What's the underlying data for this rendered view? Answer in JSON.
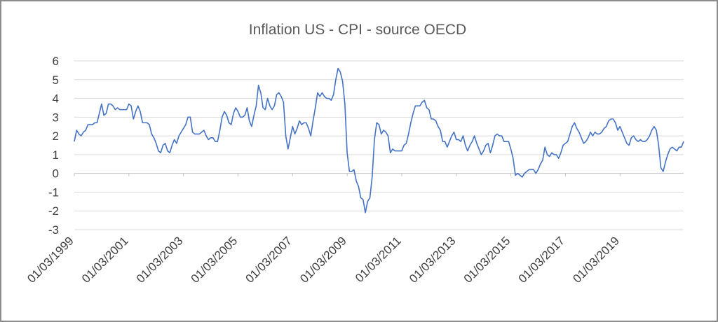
{
  "chart_data": {
    "type": "line",
    "title": "Inflation US - CPI - source OECD",
    "xlabel": "",
    "ylabel": "",
    "ylim": [
      -3,
      6
    ],
    "y_ticks": [
      6,
      5,
      4,
      3,
      2,
      1,
      0,
      -1,
      -2,
      -3
    ],
    "x_tick_labels": [
      "01/03/1999",
      "01/03/2001",
      "01/03/2003",
      "01/03/2005",
      "01/03/2007",
      "01/03/2009",
      "01/03/2011",
      "01/03/2013",
      "01/03/2015",
      "01/03/2017",
      "01/03/2019"
    ],
    "x_start": "1999-03",
    "x_end": "2020-12",
    "grid": true,
    "legend": "none",
    "line_color": "#4472c4",
    "series": [
      {
        "values": [
          1.7,
          2.3,
          2.1,
          2.0,
          2.2,
          2.3,
          2.6,
          2.6,
          2.6,
          2.7,
          2.7,
          3.2,
          3.7,
          3.1,
          3.2,
          3.7,
          3.7,
          3.6,
          3.4,
          3.5,
          3.4,
          3.4,
          3.4,
          3.4,
          3.7,
          3.6,
          2.9,
          3.3,
          3.6,
          3.3,
          2.7,
          2.7,
          2.7,
          2.6,
          2.1,
          1.9,
          1.6,
          1.2,
          1.1,
          1.5,
          1.6,
          1.2,
          1.1,
          1.5,
          1.8,
          1.6,
          2.0,
          2.2,
          2.4,
          2.6,
          3.0,
          3.0,
          2.2,
          2.1,
          2.1,
          2.1,
          2.2,
          2.3,
          2.0,
          1.8,
          1.9,
          1.9,
          1.7,
          1.7,
          2.3,
          3.0,
          3.3,
          3.1,
          2.7,
          2.6,
          3.2,
          3.5,
          3.3,
          3.0,
          3.0,
          3.1,
          3.5,
          2.8,
          2.5,
          3.1,
          3.6,
          4.7,
          4.3,
          3.5,
          3.4,
          4.0,
          3.6,
          3.4,
          3.6,
          4.2,
          4.3,
          4.1,
          3.8,
          2.0,
          1.3,
          1.9,
          2.5,
          2.1,
          2.4,
          2.8,
          2.6,
          2.7,
          2.7,
          2.4,
          2.0,
          2.8,
          3.5,
          4.3,
          4.1,
          4.3,
          4.1,
          4.0,
          4.0,
          3.9,
          4.2,
          5.0,
          5.6,
          5.4,
          4.9,
          3.7,
          1.1,
          0.1,
          0.1,
          0.2,
          -0.4,
          -0.7,
          -1.3,
          -1.4,
          -2.1,
          -1.5,
          -1.3,
          -0.2,
          1.8,
          2.7,
          2.6,
          2.1,
          2.3,
          2.2,
          2.0,
          1.1,
          1.3,
          1.2,
          1.2,
          1.2,
          1.2,
          1.5,
          1.6,
          2.1,
          2.7,
          3.2,
          3.6,
          3.6,
          3.6,
          3.8,
          3.9,
          3.5,
          3.4,
          2.9,
          2.9,
          2.8,
          2.5,
          2.3,
          1.7,
          1.7,
          1.4,
          1.7,
          2.0,
          2.2,
          1.8,
          1.8,
          1.7,
          2.0,
          1.5,
          1.2,
          1.5,
          1.7,
          2.0,
          1.6,
          1.3,
          1.0,
          1.2,
          1.5,
          1.6,
          1.1,
          1.5,
          2.0,
          2.1,
          2.0,
          2.0,
          1.7,
          1.7,
          1.7,
          1.3,
          0.8,
          -0.1,
          0.0,
          -0.1,
          -0.2,
          0.0,
          0.1,
          0.2,
          0.2,
          0.2,
          0.0,
          0.2,
          0.5,
          0.7,
          1.4,
          1.0,
          0.9,
          1.1,
          1.0,
          1.0,
          0.8,
          1.1,
          1.5,
          1.6,
          1.7,
          2.1,
          2.5,
          2.7,
          2.4,
          2.2,
          1.9,
          1.6,
          1.7,
          1.9,
          2.2,
          2.0,
          2.2,
          2.1,
          2.1,
          2.2,
          2.4,
          2.5,
          2.8,
          2.9,
          2.9,
          2.7,
          2.3,
          2.5,
          2.2,
          1.9,
          1.6,
          1.5,
          1.9,
          2.0,
          1.8,
          1.7,
          1.8,
          1.7,
          1.7,
          1.8,
          2.0,
          2.3,
          2.5,
          2.3,
          1.5,
          0.3,
          0.1,
          0.6,
          1.0,
          1.3,
          1.4,
          1.3,
          1.2,
          1.4,
          1.4,
          1.7
        ]
      }
    ]
  }
}
